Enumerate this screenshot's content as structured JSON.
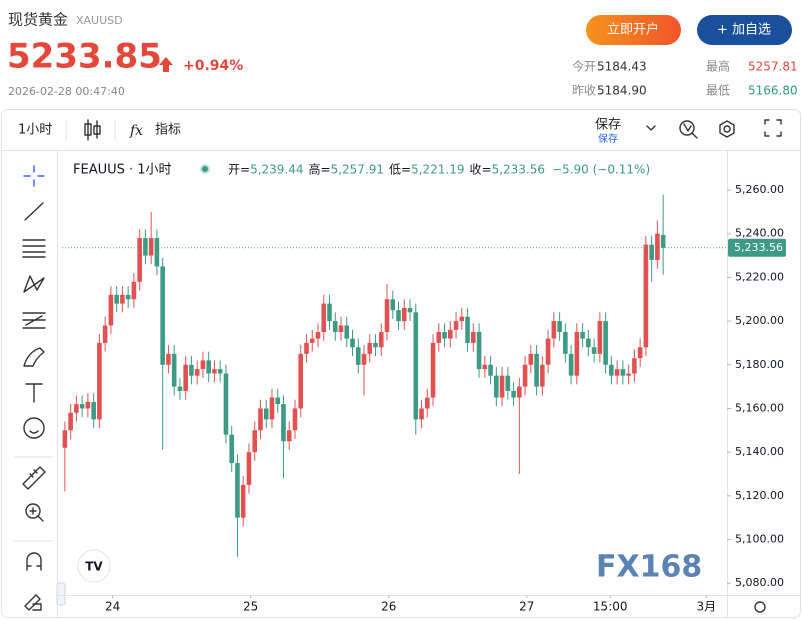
{
  "header": {
    "name": "现货黄金",
    "symbol": "XAUUSD",
    "price": "5233.85",
    "change": "+0.94%",
    "time": "2026-02-28 00:47:40",
    "buttons": [
      "立即开户",
      "+ 加自选"
    ],
    "stats": [
      {
        "label": "今开",
        "value": "5184.43",
        "color": "#333333"
      },
      {
        "label": "最高",
        "value": "5257.81",
        "color": "#e5483b"
      },
      {
        "label": "昨收",
        "value": "5184.90",
        "color": "#333333"
      },
      {
        "label": "最低",
        "value": "5166.80",
        "color": "#2e9e7c"
      }
    ]
  },
  "toolbar": {
    "interval": "1小时",
    "indicators": "指标",
    "save": "保存",
    "save_sub": "保存"
  },
  "chart_data": {
    "type": "candlestick",
    "title": "FEAUUS · 1小时",
    "legend": [
      {
        "label": "开=",
        "value": "5,239.44"
      },
      {
        "label": "高=",
        "value": "5,257.91"
      },
      {
        "label": "低=",
        "value": "5,221.19"
      },
      {
        "label": "收=",
        "value": "5,233.56"
      }
    ],
    "legend_change": "−5.90 (−0.11%)",
    "up_color": "#e25151",
    "down_color": "#3d9b85",
    "open": [
      5142,
      5150,
      5158,
      5162,
      5160,
      5163,
      5155,
      5190,
      5198,
      5212,
      5208,
      5212,
      5210,
      5218,
      5238,
      5230,
      5238,
      5225,
      5180,
      5185,
      5170,
      5168,
      5180,
      5175,
      5178,
      5182,
      5176,
      5178,
      5176,
      5148,
      5135,
      5110,
      5125,
      5140,
      5150,
      5160,
      5155,
      5165,
      5162,
      5145,
      5150,
      5160,
      5185,
      5190,
      5192,
      5195,
      5208,
      5200,
      5195,
      5198,
      5192,
      5188,
      5180,
      5185,
      5190,
      5188,
      5195,
      5210,
      5205,
      5200,
      5206,
      5204,
      5155,
      5160,
      5165,
      5190,
      5195,
      5192,
      5196,
      5200,
      5202,
      5190,
      5195,
      5178,
      5180,
      5175,
      5165,
      5175,
      5168,
      5165,
      5170,
      5180,
      5185,
      5170,
      5180,
      5192,
      5200,
      5195,
      5185,
      5175,
      5195,
      5192,
      5188,
      5185,
      5200,
      5180,
      5175,
      5178,
      5175,
      5176,
      5183,
      5188,
      5235,
      5228,
      5239.44
    ],
    "high": [
      5154,
      5162,
      5166,
      5166,
      5167,
      5167,
      5194,
      5202,
      5216,
      5216,
      5216,
      5216,
      5222,
      5242,
      5242,
      5250,
      5242,
      5229,
      5189,
      5189,
      5174,
      5184,
      5184,
      5182,
      5186,
      5186,
      5182,
      5182,
      5180,
      5152,
      5139,
      5129,
      5144,
      5154,
      5164,
      5164,
      5169,
      5169,
      5166,
      5154,
      5164,
      5189,
      5194,
      5196,
      5199,
      5212,
      5212,
      5204,
      5202,
      5202,
      5196,
      5192,
      5189,
      5194,
      5194,
      5199,
      5217,
      5214,
      5209,
      5210,
      5210,
      5208,
      5164,
      5169,
      5194,
      5199,
      5199,
      5200,
      5204,
      5206,
      5206,
      5199,
      5199,
      5184,
      5184,
      5179,
      5179,
      5179,
      5172,
      5174,
      5184,
      5189,
      5189,
      5184,
      5196,
      5204,
      5204,
      5199,
      5189,
      5199,
      5199,
      5196,
      5192,
      5204,
      5204,
      5184,
      5182,
      5182,
      5180,
      5187,
      5192,
      5239,
      5239,
      5246,
      5257.91
    ],
    "low": [
      5122,
      5146,
      5154,
      5156,
      5156,
      5151,
      5151,
      5186,
      5194,
      5204,
      5204,
      5206,
      5206,
      5214,
      5226,
      5226,
      5221,
      5141,
      5176,
      5166,
      5164,
      5164,
      5171,
      5171,
      5174,
      5172,
      5172,
      5172,
      5144,
      5131,
      5092,
      5106,
      5121,
      5136,
      5146,
      5151,
      5151,
      5158,
      5128,
      5141,
      5146,
      5156,
      5181,
      5186,
      5188,
      5191,
      5196,
      5191,
      5191,
      5188,
      5184,
      5176,
      5166,
      5181,
      5184,
      5184,
      5191,
      5201,
      5196,
      5196,
      5200,
      5148,
      5151,
      5156,
      5161,
      5186,
      5188,
      5188,
      5192,
      5196,
      5186,
      5186,
      5174,
      5174,
      5171,
      5161,
      5161,
      5164,
      5161,
      5130,
      5166,
      5176,
      5166,
      5166,
      5176,
      5188,
      5191,
      5181,
      5171,
      5171,
      5188,
      5184,
      5181,
      5181,
      5176,
      5171,
      5171,
      5171,
      5171,
      5172,
      5179,
      5184,
      5218,
      5224,
      5221.19
    ],
    "close": [
      5150,
      5158,
      5162,
      5160,
      5163,
      5155,
      5190,
      5198,
      5212,
      5208,
      5212,
      5210,
      5218,
      5238,
      5230,
      5238,
      5225,
      5180,
      5185,
      5170,
      5168,
      5180,
      5175,
      5178,
      5182,
      5176,
      5178,
      5176,
      5148,
      5135,
      5110,
      5125,
      5140,
      5150,
      5160,
      5155,
      5165,
      5162,
      5145,
      5150,
      5160,
      5185,
      5190,
      5192,
      5195,
      5208,
      5200,
      5195,
      5198,
      5192,
      5188,
      5180,
      5185,
      5190,
      5188,
      5195,
      5210,
      5205,
      5200,
      5206,
      5204,
      5155,
      5160,
      5165,
      5190,
      5195,
      5192,
      5196,
      5200,
      5202,
      5190,
      5195,
      5178,
      5180,
      5175,
      5165,
      5175,
      5168,
      5165,
      5170,
      5180,
      5185,
      5170,
      5180,
      5192,
      5200,
      5195,
      5185,
      5175,
      5195,
      5192,
      5188,
      5185,
      5200,
      5180,
      5175,
      5178,
      5175,
      5176,
      5183,
      5188,
      5235,
      5228,
      5240,
      5233.56
    ],
    "last_price_label": "5,233.56",
    "ylim": [
      5074.6,
      5277.4
    ],
    "yticks": [
      {
        "value": 5080,
        "label": "5,080.00"
      },
      {
        "value": 5100,
        "label": "5,100.00"
      },
      {
        "value": 5120,
        "label": "5,120.00"
      },
      {
        "value": 5140,
        "label": "5,140.00"
      },
      {
        "value": 5160,
        "label": "5,160.00"
      },
      {
        "value": 5180,
        "label": "5,180.00"
      },
      {
        "value": 5200,
        "label": "5,200.00"
      },
      {
        "value": 5220,
        "label": "5,220.00"
      },
      {
        "value": 5240,
        "label": "5,240.00"
      },
      {
        "value": 5260,
        "label": "5,260.00"
      }
    ],
    "xlim": [
      -0.5,
      115.1
    ],
    "xticks": [
      {
        "value": 8.3,
        "label": "24"
      },
      {
        "value": 32.3,
        "label": "25"
      },
      {
        "value": 56.3,
        "label": "26"
      },
      {
        "value": 80.3,
        "label": "27"
      },
      {
        "value": 94.8,
        "label": "15:00"
      },
      {
        "value": 111.5,
        "label": "3月"
      }
    ],
    "grid": false,
    "watermark": "FX168"
  }
}
